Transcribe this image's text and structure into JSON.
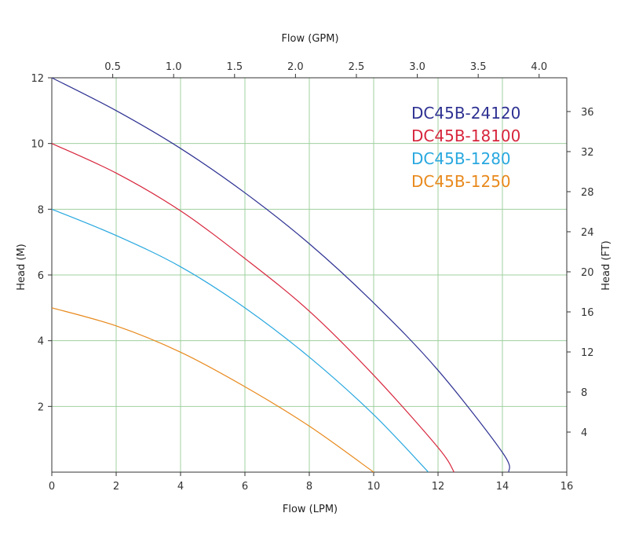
{
  "chart_data": {
    "type": "line",
    "title": "",
    "xlabel": "Flow (LPM)",
    "ylabel": "Head (M)",
    "x2label": "Flow (GPM)",
    "y2label": "Head (FT)",
    "xlim": [
      0,
      16
    ],
    "ylim": [
      0,
      12
    ],
    "x2lim": [
      0,
      4.227
    ],
    "y2lim": [
      0,
      39.37
    ],
    "xticks": [
      "0",
      "2",
      "4",
      "6",
      "8",
      "10",
      "12",
      "14",
      "16"
    ],
    "yticks": [
      "2",
      "4",
      "6",
      "8",
      "10",
      "12"
    ],
    "x2ticks": [
      "0.5",
      "1.0",
      "1.5",
      "2.0",
      "2.5",
      "3.0",
      "3.5",
      "4.0"
    ],
    "y2ticks": [
      "4",
      "8",
      "12",
      "16",
      "20",
      "24",
      "28",
      "32",
      "36"
    ],
    "grid": true,
    "legend_position": "top-right",
    "colors": {
      "grid": "#9fd09f",
      "axis": "#333333",
      "DC45B-24120": "#2e3192",
      "DC45B-18100": "#d7263d",
      "DC45B-1280": "#29a8df",
      "DC45B-1250": "#e8891c"
    },
    "series": [
      {
        "name": "DC45B-24120",
        "x": [
          0,
          2,
          4,
          6,
          8,
          10,
          12,
          14,
          14.2
        ],
        "y": [
          12,
          11.0,
          9.85,
          8.5,
          6.95,
          5.15,
          3.1,
          0.6,
          0
        ]
      },
      {
        "name": "DC45B-18100",
        "x": [
          0,
          2,
          4,
          6,
          8,
          10,
          12,
          12.5
        ],
        "y": [
          10,
          9.1,
          7.95,
          6.5,
          4.9,
          2.95,
          0.75,
          0
        ]
      },
      {
        "name": "DC45B-1280",
        "x": [
          0,
          2,
          4,
          6,
          8,
          10,
          11.7
        ],
        "y": [
          8,
          7.2,
          6.25,
          5.0,
          3.5,
          1.75,
          0
        ]
      },
      {
        "name": "DC45B-1250",
        "x": [
          0,
          2,
          4,
          6,
          8,
          10
        ],
        "y": [
          5,
          4.45,
          3.65,
          2.6,
          1.4,
          0
        ]
      }
    ]
  }
}
